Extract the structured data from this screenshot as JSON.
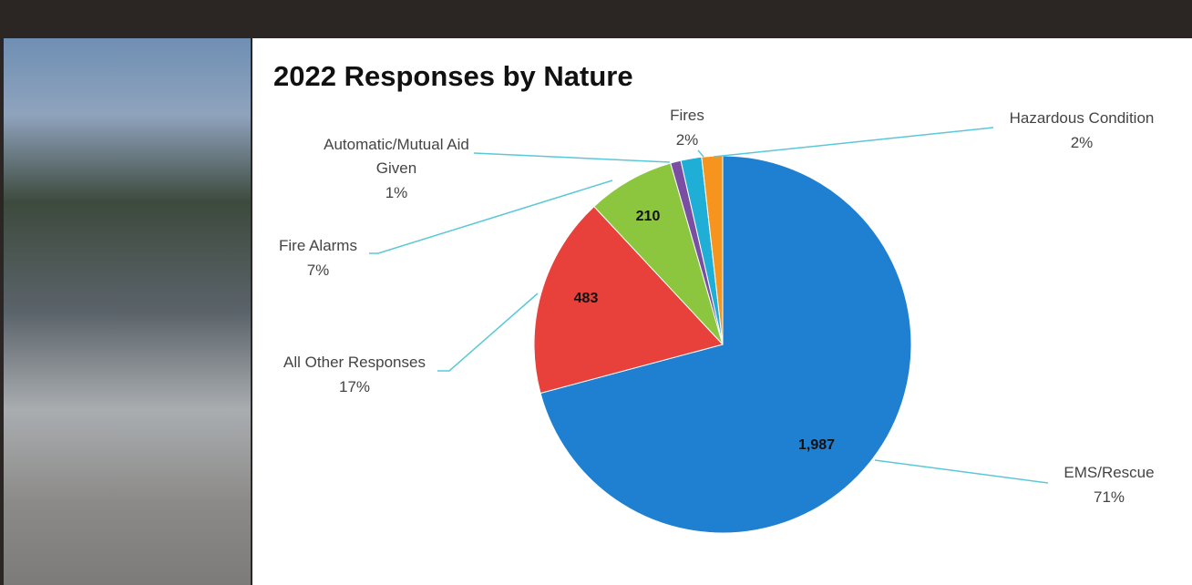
{
  "chart_data": {
    "type": "pie",
    "title": "2022 Responses by Nature",
    "categories": [
      "EMS/Rescue",
      "All Other Responses",
      "Fire Alarms",
      "Automatic/Mutual Aid Given",
      "Fires",
      "Hazardous Condition"
    ],
    "values": [
      1987,
      483,
      210,
      25,
      50,
      50
    ],
    "value_labels": [
      "1,987",
      "483",
      "210",
      null,
      null,
      null
    ],
    "percent_labels": [
      "71%",
      "17%",
      "7%",
      "1%",
      "2%",
      "2%"
    ],
    "colors": [
      "#1f7fd0",
      "#e8403a",
      "#8cc63f",
      "#7a4fa3",
      "#1eaed6",
      "#f7941d"
    ]
  }
}
